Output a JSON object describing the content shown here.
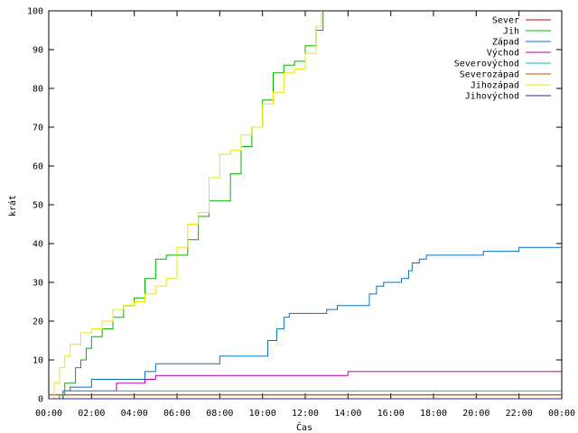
{
  "chart_data": {
    "type": "line",
    "xlabel": "Čas",
    "ylabel": "krát",
    "xlim": [
      "00:00",
      "24:00"
    ],
    "ylim": [
      0,
      100
    ],
    "x_ticks": [
      "00:00",
      "02:00",
      "04:00",
      "06:00",
      "08:00",
      "10:00",
      "12:00",
      "14:00",
      "16:00",
      "18:00",
      "20:00",
      "22:00",
      "00:00"
    ],
    "y_ticks": [
      0,
      10,
      20,
      30,
      40,
      50,
      60,
      70,
      80,
      90,
      100
    ],
    "legend_position": "top-right",
    "grid": false,
    "series": [
      {
        "name": "Sever",
        "color": "#e00000",
        "x": [
          "00:00",
          "24:00"
        ],
        "values": [
          1,
          1
        ]
      },
      {
        "name": "Jih",
        "color": "#00b000",
        "x": [
          "00:00",
          "00:30",
          "00:45",
          "01:00",
          "01:15",
          "01:30",
          "01:45",
          "02:00",
          "02:30",
          "03:00",
          "03:30",
          "04:00",
          "04:30",
          "05:00",
          "05:30",
          "06:00",
          "06:30",
          "07:00",
          "07:30",
          "08:00",
          "08:30",
          "09:00",
          "09:30",
          "10:00",
          "10:30",
          "11:00",
          "11:30",
          "12:00",
          "12:30",
          "12:50"
        ],
        "values": [
          0,
          1,
          4,
          4,
          8,
          10,
          13,
          16,
          18,
          21,
          24,
          26,
          31,
          36,
          37,
          37,
          41,
          47,
          51,
          51,
          58,
          65,
          70,
          77,
          84,
          86,
          87,
          91,
          95,
          100
        ]
      },
      {
        "name": "Západ",
        "color": "#0070c0",
        "x": [
          "00:00",
          "00:40",
          "01:00",
          "01:30",
          "02:00",
          "02:30",
          "04:00",
          "04:30",
          "05:00",
          "06:00",
          "07:00",
          "08:00",
          "08:30",
          "09:00",
          "10:00",
          "10:15",
          "10:40",
          "11:00",
          "11:15",
          "11:30",
          "12:00",
          "13:00",
          "13:30",
          "14:00",
          "14:30",
          "15:00",
          "15:20",
          "15:40",
          "16:00",
          "16:30",
          "16:50",
          "17:00",
          "17:20",
          "17:40",
          "18:00",
          "20:00",
          "20:20",
          "21:00",
          "21:40",
          "22:00",
          "24:00"
        ],
        "values": [
          0,
          2,
          3,
          3,
          5,
          5,
          5,
          7,
          9,
          9,
          9,
          11,
          11,
          11,
          11,
          15,
          18,
          21,
          22,
          22,
          22,
          23,
          24,
          24,
          24,
          27,
          29,
          30,
          30,
          31,
          33,
          35,
          36,
          37,
          37,
          37,
          38,
          38,
          38,
          39,
          39
        ]
      },
      {
        "name": "Východ",
        "color": "#b000b0",
        "x": [
          "00:00",
          "00:40",
          "03:10",
          "04:30",
          "05:00",
          "06:00",
          "13:50",
          "14:00",
          "24:00"
        ],
        "values": [
          0,
          2,
          4,
          5,
          6,
          6,
          6,
          7,
          7
        ]
      },
      {
        "name": "Severovýchod",
        "color": "#00c0c0",
        "x": [
          "00:00",
          "00:40",
          "24:00"
        ],
        "values": [
          0,
          2,
          2
        ]
      },
      {
        "name": "Severozápad",
        "color": "#c05000",
        "x": [
          "00:00",
          "00:40",
          "24:00"
        ],
        "values": [
          0,
          1,
          1
        ]
      },
      {
        "name": "Jihozápad",
        "color": "#e8e800",
        "x": [
          "00:00",
          "00:15",
          "00:30",
          "00:45",
          "01:00",
          "01:30",
          "02:00",
          "02:30",
          "03:00",
          "03:30",
          "04:00",
          "04:30",
          "05:00",
          "05:30",
          "06:00",
          "06:30",
          "07:00",
          "07:30",
          "08:00",
          "08:30",
          "09:00",
          "09:30",
          "10:00",
          "10:30",
          "11:00",
          "11:30",
          "12:00",
          "12:30",
          "12:45"
        ],
        "values": [
          0,
          4,
          8,
          11,
          14,
          17,
          18,
          20,
          23,
          24,
          25,
          27,
          29,
          31,
          39,
          45,
          48,
          57,
          63,
          64,
          68,
          70,
          76,
          79,
          84,
          85,
          89,
          96,
          100
        ]
      },
      {
        "name": "Jihovýchod",
        "color": "#2020b0",
        "x": [
          "00:00",
          "24:00"
        ],
        "values": [
          0,
          0
        ]
      }
    ]
  }
}
